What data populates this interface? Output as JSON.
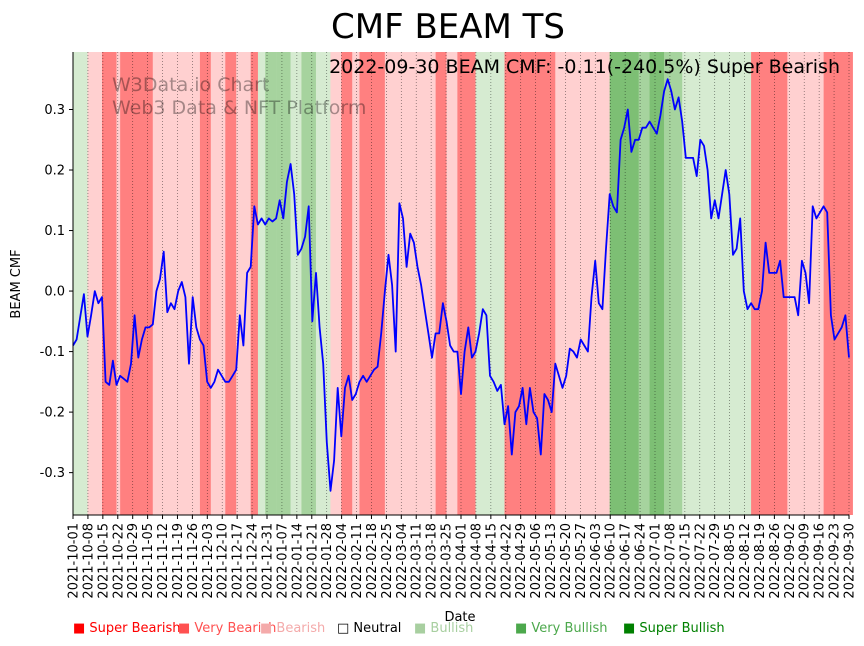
{
  "chart_data": {
    "type": "line",
    "title": "CMF BEAM TS",
    "subtitle": "2022-09-30 BEAM CMF: -0.11(-240.5%) Super Bearish",
    "watermark": [
      "W3Data.io Chart",
      "Web3 Data & NFT Platform"
    ],
    "xlabel": "Date",
    "ylabel": "BEAM CMF",
    "ylim": [
      -0.37,
      0.395
    ],
    "yticks": [
      -0.3,
      -0.2,
      -0.1,
      0.0,
      0.1,
      0.2,
      0.3
    ],
    "date_range": [
      "2021-10-01",
      "2022-09-30"
    ],
    "xtick_labels": [
      "2021-10-01",
      "2021-10-08",
      "2021-10-15",
      "2021-10-22",
      "2021-10-29",
      "2021-11-05",
      "2021-11-12",
      "2021-11-19",
      "2021-11-26",
      "2021-12-03",
      "2021-12-10",
      "2021-12-17",
      "2021-12-24",
      "2021-12-31",
      "2022-01-07",
      "2022-01-14",
      "2022-01-21",
      "2022-01-28",
      "2022-02-04",
      "2022-02-11",
      "2022-02-18",
      "2022-02-25",
      "2022-03-04",
      "2022-03-11",
      "2022-03-18",
      "2022-03-25",
      "2022-04-01",
      "2022-04-08",
      "2022-04-15",
      "2022-04-22",
      "2022-04-29",
      "2022-05-06",
      "2022-05-13",
      "2022-05-20",
      "2022-05-27",
      "2022-06-03",
      "2022-06-10",
      "2022-06-17",
      "2022-06-24",
      "2022-07-01",
      "2022-07-08",
      "2022-07-15",
      "2022-07-22",
      "2022-07-29",
      "2022-08-05",
      "2022-08-12",
      "2022-08-19",
      "2022-08-26",
      "2022-09-02",
      "2022-09-09",
      "2022-09-16",
      "2022-09-23",
      "2022-09-30"
    ],
    "series": [
      {
        "name": "BEAM CMF",
        "color": "#0000ff",
        "points": [
          [
            0,
            -0.09
          ],
          [
            1,
            -0.08
          ],
          [
            3,
            -0.005
          ],
          [
            4,
            -0.075
          ],
          [
            5,
            -0.04
          ],
          [
            6,
            0.0
          ],
          [
            7,
            -0.02
          ],
          [
            8,
            -0.01
          ],
          [
            9,
            -0.15
          ],
          [
            10,
            -0.155
          ],
          [
            11,
            -0.115
          ],
          [
            12,
            -0.155
          ],
          [
            13,
            -0.14
          ],
          [
            14,
            -0.145
          ],
          [
            15,
            -0.15
          ],
          [
            16,
            -0.12
          ],
          [
            17,
            -0.04
          ],
          [
            18,
            -0.11
          ],
          [
            19,
            -0.08
          ],
          [
            20,
            -0.06
          ],
          [
            21,
            -0.06
          ],
          [
            22,
            -0.055
          ],
          [
            23,
            0.0
          ],
          [
            24,
            0.02
          ],
          [
            25,
            0.065
          ],
          [
            26,
            -0.035
          ],
          [
            27,
            -0.02
          ],
          [
            28,
            -0.03
          ],
          [
            29,
            0.0
          ],
          [
            30,
            0.015
          ],
          [
            31,
            -0.01
          ],
          [
            32,
            -0.12
          ],
          [
            33,
            -0.01
          ],
          [
            34,
            -0.06
          ],
          [
            35,
            -0.08
          ],
          [
            36,
            -0.09
          ],
          [
            37,
            -0.15
          ],
          [
            38,
            -0.16
          ],
          [
            39,
            -0.15
          ],
          [
            40,
            -0.13
          ],
          [
            41,
            -0.14
          ],
          [
            42,
            -0.15
          ],
          [
            43,
            -0.15
          ],
          [
            44,
            -0.14
          ],
          [
            45,
            -0.13
          ],
          [
            46,
            -0.04
          ],
          [
            47,
            -0.09
          ],
          [
            48,
            0.03
          ],
          [
            49,
            0.04
          ],
          [
            50,
            0.14
          ],
          [
            51,
            0.11
          ],
          [
            52,
            0.12
          ],
          [
            53,
            0.11
          ],
          [
            54,
            0.12
          ],
          [
            55,
            0.115
          ],
          [
            56,
            0.12
          ],
          [
            57,
            0.15
          ],
          [
            58,
            0.12
          ],
          [
            59,
            0.18
          ],
          [
            60,
            0.21
          ],
          [
            61,
            0.16
          ],
          [
            62,
            0.06
          ],
          [
            63,
            0.07
          ],
          [
            64,
            0.09
          ],
          [
            65,
            0.14
          ],
          [
            66,
            -0.05
          ],
          [
            67,
            0.03
          ],
          [
            68,
            -0.06
          ],
          [
            69,
            -0.12
          ],
          [
            70,
            -0.25
          ],
          [
            71,
            -0.33
          ],
          [
            72,
            -0.28
          ],
          [
            73,
            -0.16
          ],
          [
            74,
            -0.24
          ],
          [
            75,
            -0.16
          ],
          [
            76,
            -0.14
          ],
          [
            77,
            -0.18
          ],
          [
            78,
            -0.17
          ],
          [
            79,
            -0.15
          ],
          [
            80,
            -0.14
          ],
          [
            81,
            -0.15
          ],
          [
            82,
            -0.14
          ],
          [
            83,
            -0.13
          ],
          [
            84,
            -0.125
          ],
          [
            85,
            -0.07
          ],
          [
            86,
            0.0
          ],
          [
            87,
            0.06
          ],
          [
            88,
            0.01
          ],
          [
            89,
            -0.1
          ],
          [
            90,
            0.145
          ],
          [
            91,
            0.12
          ],
          [
            92,
            0.04
          ],
          [
            93,
            0.095
          ],
          [
            94,
            0.08
          ],
          [
            95,
            0.04
          ],
          [
            96,
            0.01
          ],
          [
            97,
            -0.03
          ],
          [
            98,
            -0.07
          ],
          [
            99,
            -0.11
          ],
          [
            100,
            -0.07
          ],
          [
            101,
            -0.07
          ],
          [
            102,
            -0.02
          ],
          [
            103,
            -0.05
          ],
          [
            104,
            -0.09
          ],
          [
            105,
            -0.1
          ],
          [
            106,
            -0.1
          ],
          [
            107,
            -0.17
          ],
          [
            108,
            -0.1
          ],
          [
            109,
            -0.06
          ],
          [
            110,
            -0.11
          ],
          [
            111,
            -0.1
          ],
          [
            112,
            -0.07
          ],
          [
            113,
            -0.03
          ],
          [
            114,
            -0.04
          ],
          [
            115,
            -0.14
          ],
          [
            116,
            -0.15
          ],
          [
            117,
            -0.165
          ],
          [
            118,
            -0.155
          ],
          [
            119,
            -0.22
          ],
          [
            120,
            -0.19
          ],
          [
            121,
            -0.27
          ],
          [
            122,
            -0.2
          ],
          [
            123,
            -0.19
          ],
          [
            124,
            -0.16
          ],
          [
            125,
            -0.22
          ],
          [
            126,
            -0.16
          ],
          [
            127,
            -0.2
          ],
          [
            128,
            -0.21
          ],
          [
            129,
            -0.27
          ],
          [
            130,
            -0.17
          ],
          [
            131,
            -0.18
          ],
          [
            132,
            -0.2
          ],
          [
            133,
            -0.12
          ],
          [
            134,
            -0.14
          ],
          [
            135,
            -0.16
          ],
          [
            136,
            -0.14
          ],
          [
            137,
            -0.095
          ],
          [
            138,
            -0.1
          ],
          [
            139,
            -0.11
          ],
          [
            140,
            -0.08
          ],
          [
            141,
            -0.09
          ],
          [
            142,
            -0.1
          ],
          [
            143,
            -0.01
          ],
          [
            144,
            0.05
          ],
          [
            145,
            -0.02
          ],
          [
            146,
            -0.03
          ],
          [
            147,
            0.07
          ],
          [
            148,
            0.16
          ],
          [
            149,
            0.14
          ],
          [
            150,
            0.13
          ],
          [
            151,
            0.25
          ],
          [
            152,
            0.27
          ],
          [
            153,
            0.3
          ],
          [
            154,
            0.23
          ],
          [
            155,
            0.25
          ],
          [
            156,
            0.25
          ],
          [
            157,
            0.27
          ],
          [
            158,
            0.27
          ],
          [
            159,
            0.28
          ],
          [
            160,
            0.27
          ],
          [
            161,
            0.26
          ],
          [
            162,
            0.29
          ],
          [
            163,
            0.33
          ],
          [
            164,
            0.35
          ],
          [
            165,
            0.33
          ],
          [
            166,
            0.3
          ],
          [
            167,
            0.32
          ],
          [
            168,
            0.28
          ],
          [
            169,
            0.22
          ],
          [
            170,
            0.22
          ],
          [
            171,
            0.22
          ],
          [
            172,
            0.19
          ],
          [
            173,
            0.25
          ],
          [
            174,
            0.24
          ],
          [
            175,
            0.2
          ],
          [
            176,
            0.12
          ],
          [
            177,
            0.15
          ],
          [
            178,
            0.12
          ],
          [
            179,
            0.16
          ],
          [
            180,
            0.2
          ],
          [
            181,
            0.16
          ],
          [
            182,
            0.06
          ],
          [
            183,
            0.07
          ],
          [
            184,
            0.12
          ],
          [
            185,
            0.0
          ],
          [
            186,
            -0.03
          ],
          [
            187,
            -0.02
          ],
          [
            188,
            -0.03
          ],
          [
            189,
            -0.03
          ],
          [
            190,
            0.0
          ],
          [
            191,
            0.08
          ],
          [
            192,
            0.03
          ],
          [
            193,
            0.03
          ],
          [
            194,
            0.03
          ],
          [
            195,
            0.05
          ],
          [
            196,
            -0.01
          ],
          [
            197,
            -0.01
          ],
          [
            198,
            -0.01
          ],
          [
            199,
            -0.01
          ],
          [
            200,
            -0.04
          ],
          [
            201,
            0.05
          ],
          [
            202,
            0.03
          ],
          [
            203,
            -0.02
          ],
          [
            204,
            0.14
          ],
          [
            205,
            0.12
          ],
          [
            206,
            0.13
          ],
          [
            207,
            0.14
          ],
          [
            208,
            0.13
          ],
          [
            209,
            -0.04
          ],
          [
            210,
            -0.08
          ],
          [
            211,
            -0.07
          ],
          [
            212,
            -0.06
          ],
          [
            213,
            -0.04
          ],
          [
            214,
            -0.11
          ]
        ]
      }
    ],
    "background_bands": [
      {
        "start": 0,
        "end": 4,
        "state": "bullish"
      },
      {
        "start": 4,
        "end": 8,
        "state": "bearish"
      },
      {
        "start": 8,
        "end": 12,
        "state": "very_bearish"
      },
      {
        "start": 12,
        "end": 13,
        "state": "bearish"
      },
      {
        "start": 13,
        "end": 15,
        "state": "very_bearish"
      },
      {
        "start": 15,
        "end": 22,
        "state": "very_bearish"
      },
      {
        "start": 22,
        "end": 35,
        "state": "bearish"
      },
      {
        "start": 35,
        "end": 38,
        "state": "very_bearish"
      },
      {
        "start": 38,
        "end": 42,
        "state": "bearish"
      },
      {
        "start": 42,
        "end": 45,
        "state": "very_bearish"
      },
      {
        "start": 45,
        "end": 49,
        "state": "bearish"
      },
      {
        "start": 49,
        "end": 51,
        "state": "very_bearish"
      },
      {
        "start": 51,
        "end": 53,
        "state": "bullish"
      },
      {
        "start": 53,
        "end": 56,
        "state": "very_bullish"
      },
      {
        "start": 56,
        "end": 60,
        "state": "very_bullish"
      },
      {
        "start": 60,
        "end": 63,
        "state": "bullish"
      },
      {
        "start": 63,
        "end": 67,
        "state": "very_bullish"
      },
      {
        "start": 67,
        "end": 71,
        "state": "bullish"
      },
      {
        "start": 71,
        "end": 74,
        "state": "bearish"
      },
      {
        "start": 74,
        "end": 77,
        "state": "very_bearish"
      },
      {
        "start": 77,
        "end": 79,
        "state": "bearish"
      },
      {
        "start": 79,
        "end": 81,
        "state": "very_bearish"
      },
      {
        "start": 81,
        "end": 86,
        "state": "very_bearish"
      },
      {
        "start": 86,
        "end": 100,
        "state": "bearish"
      },
      {
        "start": 100,
        "end": 103,
        "state": "very_bearish"
      },
      {
        "start": 103,
        "end": 106,
        "state": "bearish"
      },
      {
        "start": 106,
        "end": 111,
        "state": "very_bearish"
      },
      {
        "start": 111,
        "end": 119,
        "state": "bullish"
      },
      {
        "start": 119,
        "end": 130,
        "state": "very_bearish"
      },
      {
        "start": 130,
        "end": 133,
        "state": "very_bearish"
      },
      {
        "start": 133,
        "end": 148,
        "state": "bearish"
      },
      {
        "start": 148,
        "end": 156,
        "state": "super_bullish"
      },
      {
        "start": 156,
        "end": 159,
        "state": "very_bullish"
      },
      {
        "start": 159,
        "end": 163,
        "state": "super_bullish"
      },
      {
        "start": 163,
        "end": 168,
        "state": "very_bullish"
      },
      {
        "start": 168,
        "end": 187,
        "state": "bullish"
      },
      {
        "start": 187,
        "end": 197,
        "state": "very_bearish"
      },
      {
        "start": 197,
        "end": 207,
        "state": "bearish"
      },
      {
        "start": 207,
        "end": 215,
        "state": "very_bearish"
      }
    ],
    "legend": [
      {
        "label": "Super Bearish",
        "marker": "■",
        "color": "#ff0000"
      },
      {
        "label": "Very Bearish",
        "marker": "■",
        "color": "#ff5050"
      },
      {
        "label": "Bearish",
        "marker": "■",
        "color": "#f4aaaa"
      },
      {
        "label": "Neutral",
        "marker": "□",
        "color": "#000000"
      },
      {
        "label": "Bullish",
        "marker": "■",
        "color": "#a8cfa0"
      },
      {
        "label": "Very Bullish",
        "marker": "■",
        "color": "#4ca84c"
      },
      {
        "label": "Super Bullish",
        "marker": "■",
        "color": "#008000"
      }
    ],
    "band_colors": {
      "super_bearish": "#ff3b3b",
      "very_bearish": "#ff8080",
      "bearish": "#ffd0d0",
      "neutral": "#ffffff",
      "bullish": "#d6ebd1",
      "very_bullish": "#a6d39e",
      "super_bullish": "#7dbf74"
    }
  }
}
